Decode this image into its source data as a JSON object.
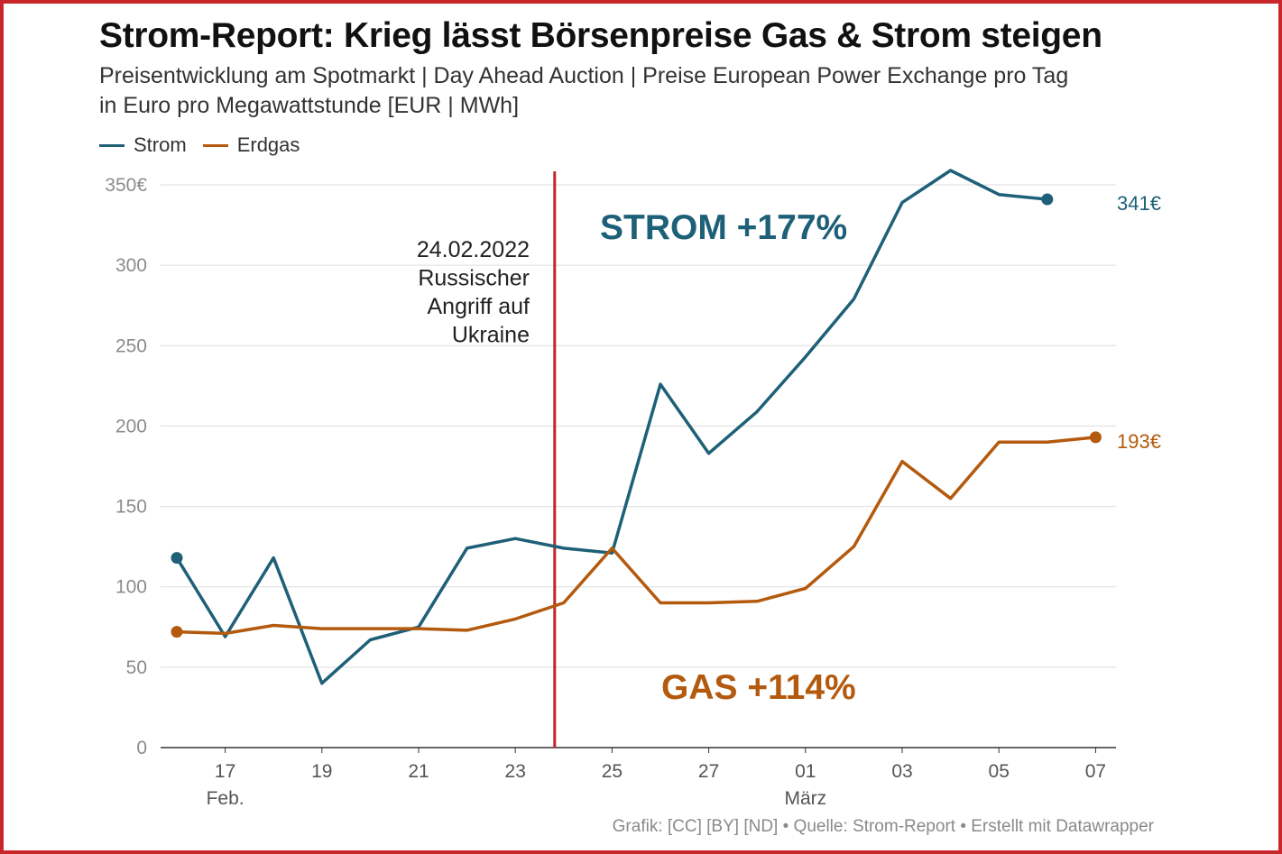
{
  "header": {
    "title": "Strom-Report: Krieg lässt Börsenpreise Gas & Strom steigen",
    "subtitle_line1": "Preisentwicklung am Spotmarkt | Day Ahead Auction | Preise European Power Exchange pro Tag",
    "subtitle_line2": "in Euro pro Megawattstunde [EUR | MWh]"
  },
  "footer": {
    "credit": "Grafik: [CC] [BY] [ND] • Quelle: Strom-Report • Erstellt mit Datawrapper"
  },
  "colors": {
    "strom": "#1e6078",
    "erdgas": "#b35a0e",
    "event_line": "#c1272d",
    "grid": "#dddddd",
    "axis_label": "#8c8c8c"
  },
  "chart_data": {
    "type": "line",
    "x": [
      "16.02",
      "17.02",
      "18.02",
      "19.02",
      "20.02",
      "21.02",
      "22.02",
      "23.02",
      "24.02",
      "25.02",
      "26.02",
      "27.02",
      "28.02",
      "01.03",
      "02.03",
      "03.03",
      "04.03",
      "05.03",
      "06.03",
      "07.03"
    ],
    "x_tick_labels": [
      {
        "index": 1,
        "label": "17",
        "sublabel": "Feb."
      },
      {
        "index": 3,
        "label": "19",
        "sublabel": ""
      },
      {
        "index": 5,
        "label": "21",
        "sublabel": ""
      },
      {
        "index": 7,
        "label": "23",
        "sublabel": ""
      },
      {
        "index": 9,
        "label": "25",
        "sublabel": ""
      },
      {
        "index": 11,
        "label": "27",
        "sublabel": ""
      },
      {
        "index": 13,
        "label": "01",
        "sublabel": "März"
      },
      {
        "index": 15,
        "label": "03",
        "sublabel": ""
      },
      {
        "index": 17,
        "label": "05",
        "sublabel": ""
      },
      {
        "index": 19,
        "label": "07",
        "sublabel": ""
      }
    ],
    "y_ticks": [
      {
        "value": 0,
        "label": "0"
      },
      {
        "value": 50,
        "label": "50"
      },
      {
        "value": 100,
        "label": "100"
      },
      {
        "value": 150,
        "label": "150"
      },
      {
        "value": 200,
        "label": "200"
      },
      {
        "value": 250,
        "label": "250"
      },
      {
        "value": 300,
        "label": "300"
      },
      {
        "value": 350,
        "label": "350€"
      }
    ],
    "ylim": [
      0,
      350
    ],
    "grid": true,
    "legend_position": "top-left",
    "series": [
      {
        "name": "Strom",
        "key": "strom",
        "values": [
          118,
          69,
          118,
          40,
          67,
          75,
          124,
          130,
          124,
          121,
          226,
          183,
          209,
          243,
          279,
          339,
          359,
          344,
          341,
          null
        ],
        "end_label": "341€",
        "big_label": "STROM +177%"
      },
      {
        "name": "Erdgas",
        "key": "erdgas",
        "values": [
          72,
          71,
          76,
          74,
          74,
          74,
          73,
          80,
          90,
          124,
          90,
          90,
          91,
          99,
          125,
          178,
          155,
          190,
          190,
          193
        ],
        "end_label": "193€",
        "big_label": "GAS +114%"
      }
    ],
    "annotation": {
      "x": "24.02",
      "lines": [
        "24.02.2022",
        "Russischer",
        "Angriff auf",
        "Ukraine"
      ]
    }
  }
}
